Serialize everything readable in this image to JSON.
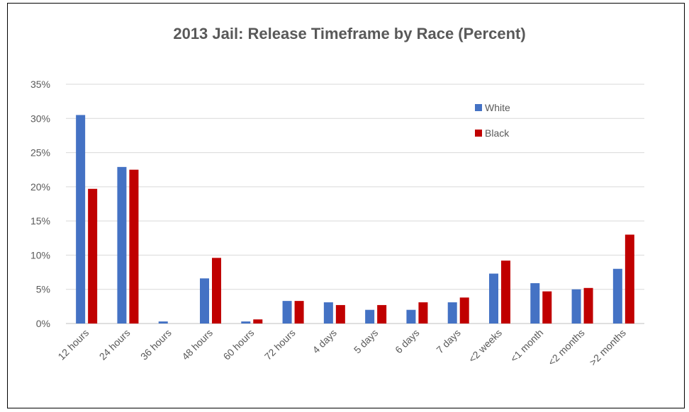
{
  "chart_data": {
    "type": "bar",
    "title": "2013 Jail: Release Timeframe by Race (Percent)",
    "xlabel": "",
    "ylabel": "",
    "ylim": [
      0,
      35
    ],
    "yticks": [
      "0%",
      "5%",
      "10%",
      "15%",
      "20%",
      "25%",
      "30%",
      "35%"
    ],
    "grid": true,
    "legend_position": "top-right",
    "categories": [
      "12 hours",
      "24 hours",
      "36 hours",
      "48 hours",
      "60 hours",
      "72 hours",
      "4 days",
      "5 days",
      "6 days",
      "7 days",
      "<2 weeks",
      "<1 month",
      "<2 months",
      ">2 months"
    ],
    "series": [
      {
        "name": "White",
        "color": "#4472C4",
        "values": [
          30.5,
          22.9,
          0.3,
          6.6,
          0.3,
          3.3,
          3.1,
          2.0,
          2.0,
          3.1,
          7.3,
          5.9,
          5.0,
          8.0
        ]
      },
      {
        "name": "Black",
        "color": "#C00000",
        "values": [
          19.7,
          22.5,
          0.0,
          9.6,
          0.6,
          3.3,
          2.7,
          2.7,
          3.1,
          3.8,
          9.2,
          4.7,
          5.2,
          13.0
        ]
      }
    ]
  }
}
